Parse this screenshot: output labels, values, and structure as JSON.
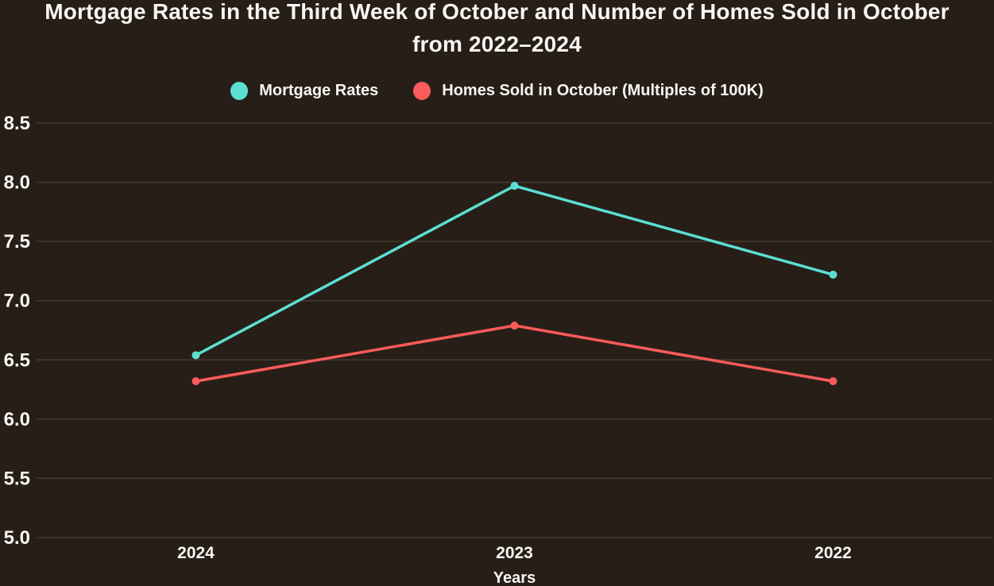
{
  "chart_data": {
    "type": "line",
    "title": "Mortgage Rates in the Third Week of October and Number of Homes Sold in October from 2022–2024",
    "xlabel": "Years",
    "ylabel": "",
    "categories": [
      "2024",
      "2023",
      "2022"
    ],
    "series": [
      {
        "name": "Mortgage Rates",
        "color": "#5CDFD3",
        "values": [
          6.54,
          7.97,
          7.22
        ]
      },
      {
        "name": "Homes Sold in October (Multiples of 100K)",
        "color": "#FB5B5B",
        "values": [
          6.32,
          6.79,
          6.32
        ]
      }
    ],
    "ylim": [
      5.0,
      8.5
    ],
    "yticks": [
      5.0,
      5.5,
      6.0,
      6.5,
      7.0,
      7.5,
      8.0,
      8.5
    ],
    "grid": true,
    "legend_position": "top",
    "background_color": "#271F17",
    "grid_color": "#453C31",
    "text_color": "#F8F6F3"
  }
}
